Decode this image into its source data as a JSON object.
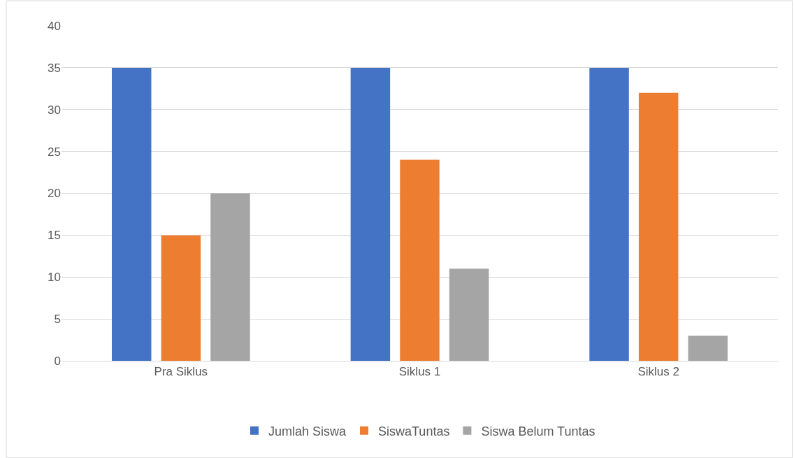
{
  "chart_data": {
    "type": "bar",
    "categories": [
      "Pra Siklus",
      "Siklus 1",
      "Siklus 2"
    ],
    "series": [
      {
        "name": "Jumlah Siswa",
        "color": "#4472c4",
        "values": [
          35,
          35,
          35
        ]
      },
      {
        "name": "SiswaTuntas",
        "color": "#ed7d31",
        "values": [
          15,
          24,
          32
        ]
      },
      {
        "name": "Siswa Belum Tuntas",
        "color": "#a5a5a5",
        "values": [
          20,
          11,
          3
        ]
      }
    ],
    "ylim": [
      0,
      40
    ],
    "yticks": [
      0,
      5,
      10,
      15,
      20,
      25,
      30,
      35,
      40
    ],
    "grid": "y",
    "legend": "bottom"
  }
}
